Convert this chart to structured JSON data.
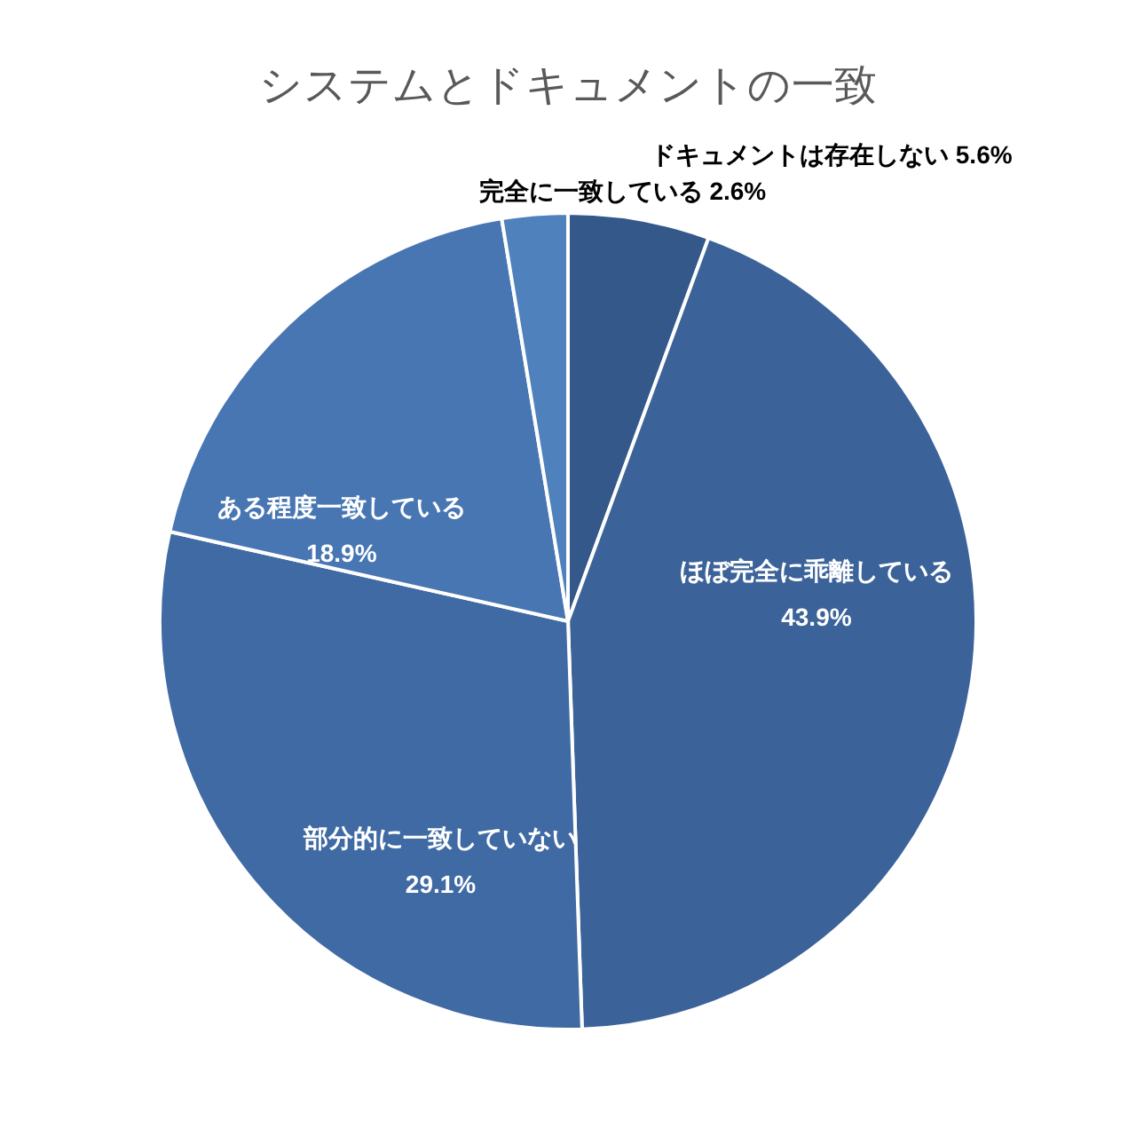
{
  "chart_data": {
    "type": "pie",
    "title": "システムとドキュメントの一致",
    "categories": [
      "ドキュメントは存在しない",
      "ほぼ完全に乖離している",
      "部分的に一致していない",
      "ある程度一致している",
      "完全に一致している"
    ],
    "values": [
      5.6,
      43.9,
      29.1,
      18.9,
      2.6
    ],
    "value_labels": [
      "5.6%",
      "43.9%",
      "29.1%",
      "18.9%",
      "2.6%"
    ],
    "colors": [
      "#34588a",
      "#3b6399",
      "#406aa3",
      "#4876b3",
      "#4f81bd"
    ]
  }
}
